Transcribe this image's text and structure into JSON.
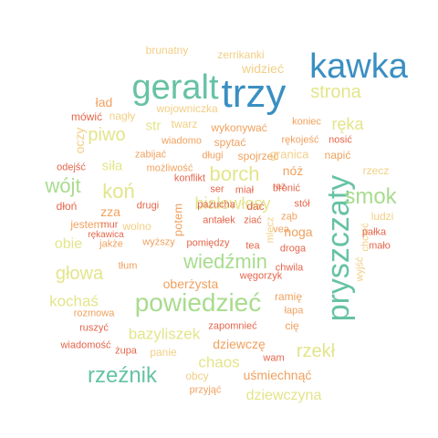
{
  "palette": {
    "blue": "#3a8fc2",
    "teal": "#66c2a5",
    "green": "#a8dc8e",
    "yellow": "#e3e58a",
    "sand": "#f2cf85",
    "orange": "#f0a15e",
    "red": "#e4654a"
  },
  "words": [
    {
      "text": "kawka",
      "color": "blue"
    },
    {
      "text": "trzy",
      "color": "blue"
    },
    {
      "text": "geralt",
      "color": "teal"
    },
    {
      "text": "pryszczaty",
      "color": "teal"
    },
    {
      "text": "powiedzieć",
      "color": "green"
    },
    {
      "text": "strona",
      "color": "yellow"
    },
    {
      "text": "smok",
      "color": "green"
    },
    {
      "text": "wiedźmin",
      "color": "green"
    },
    {
      "text": "rzeźnik",
      "color": "teal"
    },
    {
      "text": "borch",
      "color": "yellow"
    },
    {
      "text": "wójt",
      "color": "green"
    },
    {
      "text": "koń",
      "color": "yellow"
    },
    {
      "text": "piwo",
      "color": "yellow"
    },
    {
      "text": "głowa",
      "color": "yellow"
    },
    {
      "text": "rzekł",
      "color": "yellow"
    },
    {
      "text": "białowłosy",
      "color": "yellow"
    },
    {
      "text": "bazyliszek",
      "color": "yellow"
    },
    {
      "text": "kochaś",
      "color": "yellow"
    },
    {
      "text": "chaos",
      "color": "yellow"
    },
    {
      "text": "dziewczyna",
      "color": "yellow"
    },
    {
      "text": "ręka",
      "color": "yellow"
    },
    {
      "text": "obie",
      "color": "yellow"
    },
    {
      "text": "siła",
      "color": "yellow"
    },
    {
      "text": "str",
      "color": "yellow"
    },
    {
      "text": "oczy",
      "color": "sand"
    },
    {
      "text": "brunatny",
      "color": "sand"
    },
    {
      "text": "zerrikanki",
      "color": "sand"
    },
    {
      "text": "widzieć",
      "color": "sand"
    },
    {
      "text": "ład",
      "color": "orange"
    },
    {
      "text": "nagły",
      "color": "sand"
    },
    {
      "text": "wojowniczka",
      "color": "sand"
    },
    {
      "text": "mówić",
      "color": "red"
    },
    {
      "text": "twarz",
      "color": "sand"
    },
    {
      "text": "wykonywać",
      "color": "orange"
    },
    {
      "text": "koniec",
      "color": "orange"
    },
    {
      "text": "wiadomo",
      "color": "orange"
    },
    {
      "text": "spytać",
      "color": "orange"
    },
    {
      "text": "rękojeść",
      "color": "orange"
    },
    {
      "text": "nosić",
      "color": "red"
    },
    {
      "text": "zabijać",
      "color": "orange"
    },
    {
      "text": "długi",
      "color": "orange"
    },
    {
      "text": "spojrzeć",
      "color": "orange"
    },
    {
      "text": "granica",
      "color": "sand"
    },
    {
      "text": "napić",
      "color": "orange"
    },
    {
      "text": "odejść",
      "color": "red"
    },
    {
      "text": "możliwość",
      "color": "orange"
    },
    {
      "text": "nóż",
      "color": "orange"
    },
    {
      "text": "rzecz",
      "color": "sand"
    },
    {
      "text": "konflikt",
      "color": "red"
    },
    {
      "text": "zza",
      "color": "orange"
    },
    {
      "text": "ser",
      "color": "red"
    },
    {
      "text": "miał",
      "color": "red"
    },
    {
      "text": "raz",
      "color": "red"
    },
    {
      "text": "bronić",
      "color": "red"
    },
    {
      "text": "mur",
      "color": "red"
    },
    {
      "text": "drugi",
      "color": "red"
    },
    {
      "text": "stół",
      "color": "red"
    },
    {
      "text": "dłoń",
      "color": "red"
    },
    {
      "text": "rękawica",
      "color": "red"
    },
    {
      "text": "potem",
      "color": "orange"
    },
    {
      "text": "ludzi",
      "color": "sand"
    },
    {
      "text": "jestem",
      "color": "orange"
    },
    {
      "text": "antałek",
      "color": "red"
    },
    {
      "text": "ziać",
      "color": "red"
    },
    {
      "text": "ząb",
      "color": "orange"
    },
    {
      "text": "wolno",
      "color": "sand"
    },
    {
      "text": "noga",
      "color": "orange"
    },
    {
      "text": "chcieć",
      "color": "sand"
    },
    {
      "text": "pałka",
      "color": "red"
    },
    {
      "text": "jakże",
      "color": "orange"
    },
    {
      "text": "wyższy",
      "color": "orange"
    },
    {
      "text": "pomiędzy",
      "color": "red"
    },
    {
      "text": "tea",
      "color": "red"
    },
    {
      "text": "droga",
      "color": "red"
    },
    {
      "text": "mało",
      "color": "red"
    },
    {
      "text": "wyjść",
      "color": "sand"
    },
    {
      "text": "mlecz",
      "color": "sand"
    },
    {
      "text": "tłum",
      "color": "orange"
    },
    {
      "text": "vea",
      "color": "orange"
    },
    {
      "text": "oberżysta",
      "color": "orange"
    },
    {
      "text": "węgorzyk",
      "color": "red"
    },
    {
      "text": "chwila",
      "color": "red"
    },
    {
      "text": "ramię",
      "color": "orange"
    },
    {
      "text": "łapa",
      "color": "orange"
    },
    {
      "text": "rozmowa",
      "color": "orange"
    },
    {
      "text": "zapomnieć",
      "color": "red"
    },
    {
      "text": "cię",
      "color": "orange"
    },
    {
      "text": "ruszyć",
      "color": "red"
    },
    {
      "text": "dziewczę",
      "color": "orange"
    },
    {
      "text": "wiadomość",
      "color": "red"
    },
    {
      "text": "żupa",
      "color": "red"
    },
    {
      "text": "panie",
      "color": "sand"
    },
    {
      "text": "wam",
      "color": "red"
    },
    {
      "text": "obcy",
      "color": "sand"
    },
    {
      "text": "uśmiechnąć",
      "color": "orange"
    },
    {
      "text": "przyjąć",
      "color": "orange"
    },
    {
      "text": "pazucha",
      "color": "red"
    },
    {
      "text": "dać",
      "color": "red"
    }
  ]
}
